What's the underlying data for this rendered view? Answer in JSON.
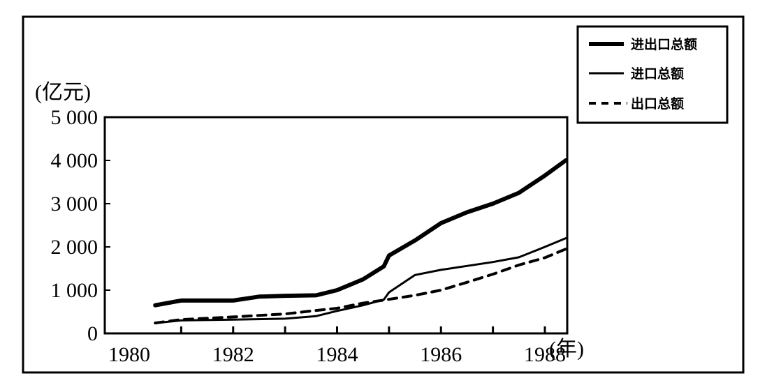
{
  "chart_data": {
    "type": "line",
    "ylabel": "(亿元)",
    "xlabel": "(年)",
    "xlim": [
      1980,
      1988.9
    ],
    "ylim": [
      0,
      5000
    ],
    "x_ticks": [
      1980,
      1982,
      1984,
      1986,
      1988
    ],
    "x_tick_labels": [
      "1980",
      "1982",
      "1984",
      "1986",
      "1988"
    ],
    "y_ticks": [
      0,
      1000,
      2000,
      3000,
      4000,
      5000
    ],
    "y_tick_labels": [
      "0",
      "1 000",
      "2 000",
      "3 000",
      "4 000",
      "5 000"
    ],
    "legend_position": "top-right",
    "grid": false,
    "series": [
      {
        "name": "进出口总额",
        "style": "thick-solid",
        "x": [
          1980.5,
          1981,
          1982,
          1982.5,
          1983,
          1983.6,
          1984,
          1984.5,
          1984.9,
          1985,
          1985.5,
          1986,
          1986.5,
          1987,
          1987.5,
          1988,
          1988.4
        ],
        "values": [
          650,
          760,
          760,
          850,
          870,
          880,
          1000,
          1250,
          1550,
          1800,
          2150,
          2550,
          2800,
          3000,
          3250,
          3650,
          4000
        ]
      },
      {
        "name": "进口总额",
        "style": "thin-solid",
        "x": [
          1980.5,
          1981,
          1982,
          1983,
          1983.6,
          1984,
          1984.5,
          1984.9,
          1985,
          1985.5,
          1986,
          1986.5,
          1987,
          1987.5,
          1988,
          1988.4
        ],
        "values": [
          240,
          300,
          320,
          340,
          400,
          520,
          650,
          780,
          950,
          1350,
          1470,
          1560,
          1650,
          1760,
          2000,
          2200
        ]
      },
      {
        "name": "出口总额",
        "style": "dashed",
        "x": [
          1980.5,
          1981,
          1982,
          1983,
          1983.6,
          1984,
          1984.5,
          1984.9,
          1985.5,
          1986,
          1986.5,
          1987,
          1987.5,
          1988,
          1988.4
        ],
        "values": [
          240,
          320,
          380,
          450,
          530,
          580,
          700,
          770,
          880,
          1000,
          1180,
          1370,
          1580,
          1750,
          1950
        ]
      }
    ]
  }
}
